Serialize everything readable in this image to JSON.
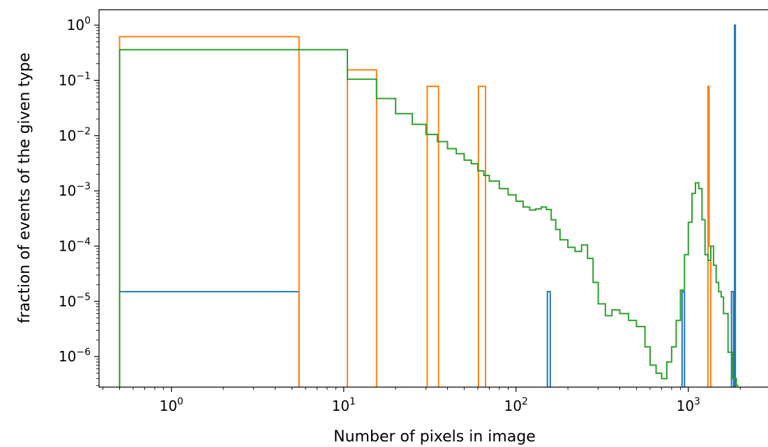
{
  "chart_data": {
    "type": "line",
    "title": "",
    "xlabel": "Number of pixels in image",
    "ylabel": "fraction of events of the given type",
    "xscale": "log",
    "yscale": "log",
    "xlim": [
      0.38,
      2900
    ],
    "ylim": [
      2.8e-07,
      1.9
    ],
    "grid": false,
    "legend": "none",
    "x_ticks": [
      {
        "value": 1,
        "base": "10",
        "exp": "0"
      },
      {
        "value": 10,
        "base": "10",
        "exp": "1"
      },
      {
        "value": 100,
        "base": "10",
        "exp": "2"
      },
      {
        "value": 1000,
        "base": "10",
        "exp": "3"
      }
    ],
    "y_ticks": [
      {
        "value": 1,
        "base": "10",
        "exp": "0"
      },
      {
        "value": 0.1,
        "base": "10",
        "exp": "−1"
      },
      {
        "value": 0.01,
        "base": "10",
        "exp": "−2"
      },
      {
        "value": 0.001,
        "base": "10",
        "exp": "−3"
      },
      {
        "value": 0.0001,
        "base": "10",
        "exp": "−4"
      },
      {
        "value": 1e-05,
        "base": "10",
        "exp": "−5"
      },
      {
        "value": 1e-06,
        "base": "10",
        "exp": "−6"
      }
    ],
    "series": [
      {
        "color": "#1f77b4",
        "edges": [
          0.5,
          5.5,
          152,
          158,
          920,
          950,
          1780,
          1830,
          1855,
          1875
        ],
        "values": [
          1.5e-05,
          0,
          1.5e-05,
          0,
          1.5e-05,
          0,
          1.5e-05,
          0,
          1.0
        ]
      },
      {
        "color": "#ff7f0e",
        "edges": [
          0.5,
          5.5,
          10.5,
          15.5,
          30.5,
          35.5,
          60.5,
          66.5,
          1300,
          1320,
          1350,
          1370
        ],
        "values": [
          0.62,
          0,
          0.155,
          0,
          0.078,
          0,
          0.078,
          0,
          0.078,
          0.0001,
          0
        ]
      },
      {
        "color": "#2ca02c",
        "x": [
          0.5,
          10.5,
          15.5,
          20,
          25,
          30,
          35,
          40,
          45,
          50,
          55,
          60,
          65,
          70,
          80,
          90,
          100,
          110,
          120,
          130,
          140,
          150,
          160,
          170,
          180,
          200,
          220,
          240,
          260,
          280,
          300,
          330,
          360,
          400,
          450,
          500,
          560,
          600,
          650,
          700,
          750,
          800,
          850,
          900,
          950,
          1000,
          1050,
          1100,
          1150,
          1200,
          1250,
          1300,
          1350,
          1400,
          1450,
          1500,
          1550,
          1600,
          1700,
          1800,
          1900
        ],
        "y": [
          0.36,
          0.105,
          0.047,
          0.025,
          0.016,
          0.0105,
          0.0078,
          0.0058,
          0.0047,
          0.0036,
          0.0031,
          0.0023,
          0.0019,
          0.0015,
          0.0011,
          0.00085,
          0.00065,
          0.00051,
          0.00045,
          0.00047,
          0.00051,
          0.00046,
          0.0003,
          0.0002,
          0.00013,
          9.5e-05,
          8e-05,
          0.000105,
          6e-05,
          2.2e-05,
          9e-06,
          5.5e-06,
          7e-06,
          6e-06,
          4.5e-06,
          3.5e-06,
          1.5e-06,
          7e-07,
          5e-07,
          4e-07,
          8e-07,
          1.5e-06,
          4.5e-06,
          1.6e-05,
          7e-05,
          0.00027,
          0.0009,
          0.0014,
          0.0011,
          0.0003,
          7e-05,
          5.5e-05,
          0.0001,
          4.5e-05,
          2.2e-05,
          1.5e-05,
          1.2e-05,
          6e-06,
          1.2e-06,
          4e-07,
          3e-07
        ]
      }
    ]
  }
}
